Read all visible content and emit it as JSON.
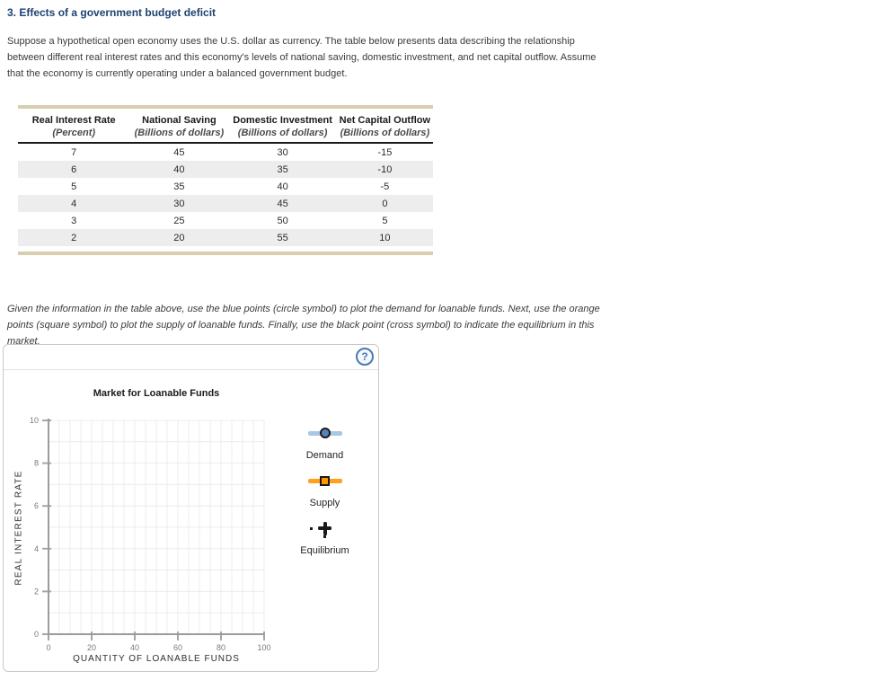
{
  "page": {
    "title": "3. Effects of a government budget deficit",
    "intro": "Suppose a hypothetical open economy uses the U.S. dollar as currency. The table below presents data describing the relationship between different real interest rates and this economy's levels of national saving, domestic investment, and net capital outflow. Assume that the economy is currently operating under a balanced government budget.",
    "instruction": "Given the information in the table above, use the blue points (circle symbol) to plot the demand for loanable funds. Next, use the orange points (square symbol) to plot the supply of loanable funds. Finally, use the black point (cross symbol) to indicate the equilibrium in this market."
  },
  "table": {
    "headers": [
      {
        "line1": "Real Interest Rate",
        "line2": "(Percent)"
      },
      {
        "line1": "National Saving",
        "line2": "(Billions of dollars)"
      },
      {
        "line1": "Domestic Investment",
        "line2": "(Billions of dollars)"
      },
      {
        "line1": "Net Capital Outflow",
        "line2": "(Billions of dollars)"
      }
    ],
    "rows": [
      [
        7,
        45,
        30,
        -15
      ],
      [
        6,
        40,
        35,
        -10
      ],
      [
        5,
        35,
        40,
        -5
      ],
      [
        4,
        30,
        45,
        0
      ],
      [
        3,
        25,
        50,
        5
      ],
      [
        2,
        20,
        55,
        10
      ]
    ]
  },
  "panel": {
    "help_glyph": "?",
    "help_color": "#4a7ab2",
    "border_color": "#c9c9c9"
  },
  "chart_data": {
    "type": "scatter",
    "title": "Market for Loanable Funds",
    "xlabel": "QUANTITY OF LOANABLE FUNDS",
    "ylabel": "REAL INTEREST RATE",
    "xlim": [
      0,
      100
    ],
    "ylim": [
      0,
      10
    ],
    "x_ticks": [
      0,
      20,
      40,
      60,
      80,
      100
    ],
    "y_ticks": [
      0,
      2,
      4,
      6,
      8,
      10
    ],
    "x_minor_step": 5,
    "y_minor_step": 1,
    "grid": true,
    "grid_color": "#ececec",
    "axis_color": "#9b9b9b",
    "tick_color": "#a6a6a6",
    "tick_label_color": "#7a7a7a",
    "legend_position": "right",
    "series": [
      {
        "name": "Demand",
        "symbol": "circle",
        "color": "#5584bb",
        "line_color": "#a9c6e4",
        "points": []
      },
      {
        "name": "Supply",
        "symbol": "square",
        "color": "#ff9800",
        "line_color": "#ffa01e",
        "points": []
      },
      {
        "name": "Equilibrium",
        "symbol": "cross",
        "color": "#1a1a1a",
        "line_color": "#1a1a1a",
        "points": []
      }
    ]
  },
  "colors": {
    "title_blue": "#1d4270",
    "table_border_tan": "#d6cead",
    "table_stripe": "#ededed",
    "header_rule": "#1a1a1a"
  }
}
